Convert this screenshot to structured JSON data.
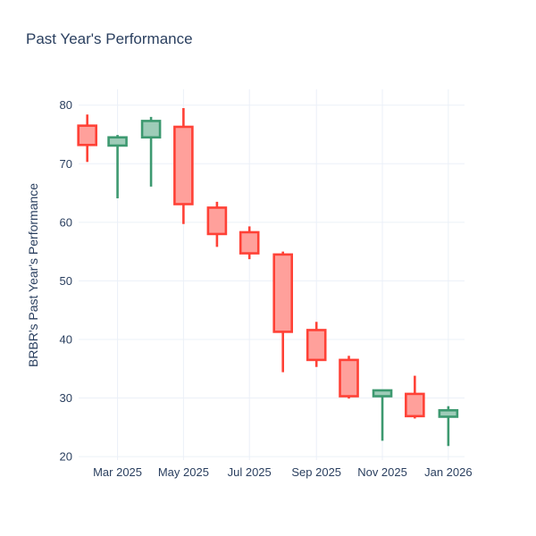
{
  "title": "Past Year's Performance",
  "chart_data": {
    "type": "candlestick",
    "title": "Past Year's Performance",
    "xlabel": "",
    "ylabel": "BRBR's Past Year's Performance",
    "grid": true,
    "legend": "none",
    "background_color": "#ffffff",
    "grid_color": "#ebf0f8",
    "font_color": "#2a3f5f",
    "increasing_line_color": "#3D9970",
    "increasing_fill_color": "#9ECCB8",
    "decreasing_line_color": "#FF4136",
    "decreasing_fill_color": "#FFA09B",
    "y_ticks": [
      20,
      30,
      40,
      50,
      60,
      70,
      80
    ],
    "y_range": [
      19.4,
      82.7
    ],
    "x_ticks": [
      {
        "label": "Mar 2025",
        "date": "2025-03-01"
      },
      {
        "label": "May 2025",
        "date": "2025-05-01"
      },
      {
        "label": "Jul 2025",
        "date": "2025-07-01"
      },
      {
        "label": "Sep 2025",
        "date": "2025-09-01"
      },
      {
        "label": "Nov 2025",
        "date": "2025-11-01"
      },
      {
        "label": "Jan 2026",
        "date": "2026-01-01"
      }
    ],
    "x_range": [
      "2025-01-24",
      "2026-01-16"
    ],
    "candles": [
      {
        "label": "Feb 2025",
        "date": "2025-02-01",
        "open": 76.5,
        "high": 78.4,
        "low": 70.3,
        "close": 73.2,
        "direction": "decreasing"
      },
      {
        "label": "Mar 2025",
        "date": "2025-03-01",
        "open": 73.1,
        "high": 74.9,
        "low": 64.1,
        "close": 74.5,
        "direction": "increasing"
      },
      {
        "label": "Apr 2025",
        "date": "2025-04-01",
        "open": 74.5,
        "high": 78.0,
        "low": 66.1,
        "close": 77.3,
        "direction": "increasing"
      },
      {
        "label": "May 2025",
        "date": "2025-05-01",
        "open": 76.3,
        "high": 79.5,
        "low": 59.7,
        "close": 63.1,
        "direction": "decreasing"
      },
      {
        "label": "Jun 2025",
        "date": "2025-06-01",
        "open": 62.5,
        "high": 63.5,
        "low": 55.8,
        "close": 58.0,
        "direction": "decreasing"
      },
      {
        "label": "Jul 2025",
        "date": "2025-07-01",
        "open": 58.3,
        "high": 59.3,
        "low": 53.7,
        "close": 54.7,
        "direction": "decreasing"
      },
      {
        "label": "Aug 2025",
        "date": "2025-08-01",
        "open": 54.5,
        "high": 55.0,
        "low": 34.4,
        "close": 41.3,
        "direction": "decreasing"
      },
      {
        "label": "Sep 2025",
        "date": "2025-09-01",
        "open": 41.6,
        "high": 43.0,
        "low": 35.3,
        "close": 36.5,
        "direction": "decreasing"
      },
      {
        "label": "Oct 2025",
        "date": "2025-10-01",
        "open": 36.5,
        "high": 37.2,
        "low": 29.9,
        "close": 30.3,
        "direction": "decreasing"
      },
      {
        "label": "Nov 2025",
        "date": "2025-11-01",
        "open": 30.3,
        "high": 31.4,
        "low": 22.7,
        "close": 31.3,
        "direction": "increasing"
      },
      {
        "label": "Dec 2025",
        "date": "2025-12-01",
        "open": 30.7,
        "high": 33.8,
        "low": 26.5,
        "close": 26.9,
        "direction": "decreasing"
      },
      {
        "label": "Jan 2026",
        "date": "2026-01-01",
        "open": 26.8,
        "high": 28.6,
        "low": 21.8,
        "close": 27.9,
        "direction": "increasing"
      }
    ]
  }
}
